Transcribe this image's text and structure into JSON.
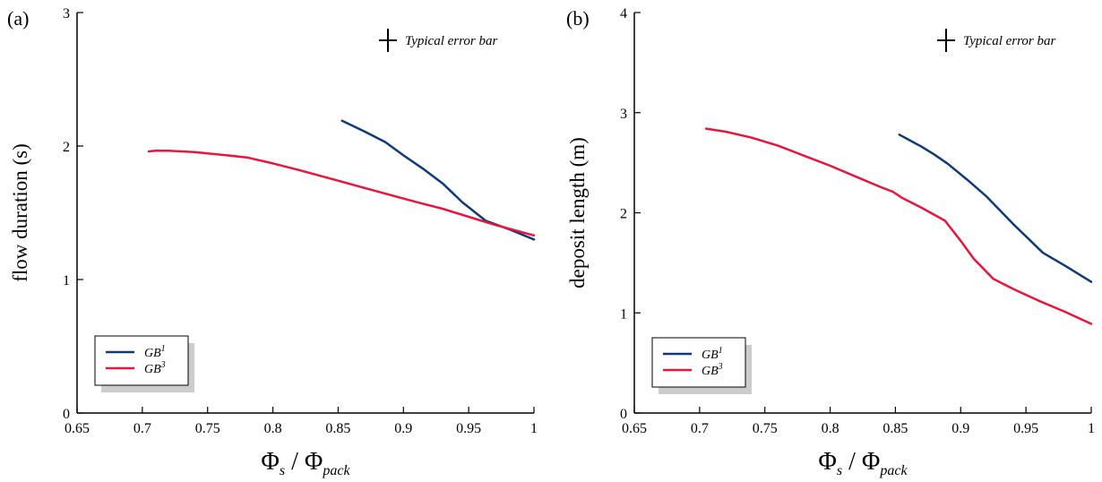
{
  "colors": {
    "gb1": "#0d3b7a",
    "gb3": "#e8153c",
    "axis": "#000000",
    "shadow": "#cccccc"
  },
  "chart_data": [
    {
      "panel_label": "(a)",
      "type": "line",
      "ylabel": "flow duration (s)",
      "xlabel_main": "Φ",
      "xlabel_sub1": "s",
      "xlabel_slash": " / ",
      "xlabel_main2": "Φ",
      "xlabel_sub2": "pack",
      "xlim": [
        0.65,
        1.0
      ],
      "ylim": [
        0,
        3
      ],
      "xticks": [
        "0.65",
        "0.7",
        "0.75",
        "0.8",
        "0.85",
        "0.9",
        "0.95",
        "1"
      ],
      "xtick_values": [
        0.65,
        0.7,
        0.75,
        0.8,
        0.85,
        0.9,
        0.95,
        1.0
      ],
      "yticks": [
        "0",
        "1",
        "2",
        "3"
      ],
      "ytick_values": [
        0,
        1,
        2,
        3
      ],
      "annotation": "Typical error bar",
      "legend_position": "bottom-left",
      "series": [
        {
          "name": "GB",
          "sup": "1",
          "color_key": "gb1",
          "x": [
            0.853,
            0.87,
            0.886,
            0.9,
            0.915,
            0.93,
            0.945,
            0.963,
            0.98,
            1.0
          ],
          "y": [
            2.19,
            2.11,
            2.03,
            1.93,
            1.83,
            1.72,
            1.58,
            1.44,
            1.38,
            1.3
          ]
        },
        {
          "name": "GB",
          "sup": "3",
          "color_key": "gb3",
          "x": [
            0.705,
            0.71,
            0.72,
            0.73,
            0.74,
            0.75,
            0.765,
            0.78,
            0.8,
            0.82,
            0.85,
            0.88,
            0.91,
            0.93,
            0.95,
            0.97,
            1.0
          ],
          "y": [
            1.96,
            1.965,
            1.965,
            1.96,
            1.955,
            1.945,
            1.93,
            1.915,
            1.87,
            1.82,
            1.74,
            1.66,
            1.58,
            1.53,
            1.47,
            1.41,
            1.33
          ]
        }
      ]
    },
    {
      "panel_label": "(b)",
      "type": "line",
      "ylabel": "deposit length (m)",
      "xlabel_main": "Φ",
      "xlabel_sub1": "s",
      "xlabel_slash": " / ",
      "xlabel_main2": "Φ",
      "xlabel_sub2": "pack",
      "xlim": [
        0.65,
        1.0
      ],
      "ylim": [
        0,
        4
      ],
      "xticks": [
        "0.65",
        "0.7",
        "0.75",
        "0.8",
        "0.85",
        "0.9",
        "0.95",
        "1"
      ],
      "xtick_values": [
        0.65,
        0.7,
        0.75,
        0.8,
        0.85,
        0.9,
        0.95,
        1.0
      ],
      "yticks": [
        "0",
        "1",
        "2",
        "3",
        "4"
      ],
      "ytick_values": [
        0,
        1,
        2,
        3,
        4
      ],
      "annotation": "Typical error bar",
      "legend_position": "bottom-left",
      "series": [
        {
          "name": "GB",
          "sup": "1",
          "color_key": "gb1",
          "x": [
            0.853,
            0.87,
            0.88,
            0.89,
            0.905,
            0.92,
            0.94,
            0.963,
            0.98,
            1.0
          ],
          "y": [
            2.78,
            2.66,
            2.58,
            2.49,
            2.33,
            2.16,
            1.89,
            1.6,
            1.47,
            1.31
          ]
        },
        {
          "name": "GB",
          "sup": "3",
          "color_key": "gb3",
          "x": [
            0.705,
            0.72,
            0.74,
            0.76,
            0.78,
            0.8,
            0.82,
            0.84,
            0.848,
            0.855,
            0.87,
            0.888,
            0.9,
            0.91,
            0.925,
            0.94,
            0.96,
            0.98,
            1.0
          ],
          "y": [
            2.84,
            2.81,
            2.75,
            2.67,
            2.57,
            2.47,
            2.36,
            2.25,
            2.21,
            2.15,
            2.05,
            1.92,
            1.72,
            1.54,
            1.34,
            1.24,
            1.12,
            1.01,
            0.89
          ]
        }
      ]
    }
  ]
}
